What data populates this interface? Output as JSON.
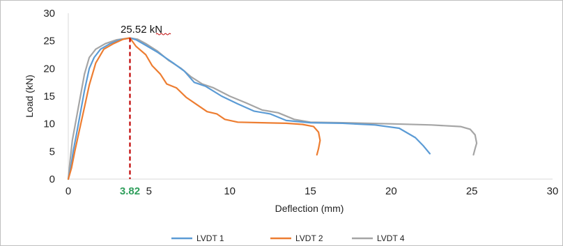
{
  "colors": {
    "lvdt1": "#5b9bd5",
    "lvdt2": "#ed7d31",
    "lvdt4": "#a5a5a5",
    "axis": "#d9d9d9",
    "peak_marker": "#c00000",
    "deflection_marker_label": "#2e9e5b"
  },
  "chart_data": {
    "type": "line",
    "title": "",
    "xlabel": "Deflection (mm)",
    "ylabel": "Load (kN)",
    "xlim": [
      0,
      30
    ],
    "ylim": [
      0,
      30
    ],
    "xticks": [
      0,
      5,
      10,
      15,
      20,
      25,
      30
    ],
    "yticks": [
      0,
      5,
      10,
      15,
      20,
      25,
      30
    ],
    "grid": false,
    "legend_position": "bottom",
    "peak_label": "25.52 kN",
    "peak_deflection_label": "3.82",
    "peak": {
      "x": 3.82,
      "y": 25.52
    },
    "series": [
      {
        "name": "LVDT 1",
        "points": [
          [
            0,
            0
          ],
          [
            0.15,
            2
          ],
          [
            0.3,
            5
          ],
          [
            0.5,
            8
          ],
          [
            0.75,
            12
          ],
          [
            1.0,
            16
          ],
          [
            1.3,
            20
          ],
          [
            1.6,
            22
          ],
          [
            2.0,
            23.5
          ],
          [
            2.6,
            24.5
          ],
          [
            3.2,
            25.2
          ],
          [
            3.82,
            25.52
          ],
          [
            4.2,
            25.2
          ],
          [
            4.8,
            24.2
          ],
          [
            5.5,
            23.0
          ],
          [
            6.0,
            22.0
          ],
          [
            6.5,
            21.0
          ],
          [
            7.2,
            19.5
          ],
          [
            7.8,
            17.5
          ],
          [
            8.5,
            16.8
          ],
          [
            9.5,
            15.0
          ],
          [
            10.5,
            13.6
          ],
          [
            11.5,
            12.3
          ],
          [
            12.5,
            11.8
          ],
          [
            13.5,
            10.6
          ],
          [
            15.0,
            10.2
          ],
          [
            17.0,
            10.1
          ],
          [
            19.0,
            9.8
          ],
          [
            20.5,
            9.2
          ],
          [
            21.5,
            7.5
          ],
          [
            22.0,
            6.0
          ],
          [
            22.4,
            4.6
          ]
        ]
      },
      {
        "name": "LVDT 2",
        "points": [
          [
            0,
            0
          ],
          [
            0.2,
            2
          ],
          [
            0.4,
            5
          ],
          [
            0.7,
            9
          ],
          [
            1.0,
            13
          ],
          [
            1.3,
            17
          ],
          [
            1.7,
            21
          ],
          [
            2.2,
            23.5
          ],
          [
            2.8,
            24.5
          ],
          [
            3.4,
            25.3
          ],
          [
            3.82,
            25.52
          ],
          [
            4.2,
            24.0
          ],
          [
            4.8,
            22.5
          ],
          [
            5.2,
            20.5
          ],
          [
            5.7,
            19.0
          ],
          [
            6.1,
            17.2
          ],
          [
            6.7,
            16.5
          ],
          [
            7.3,
            14.8
          ],
          [
            8.0,
            13.4
          ],
          [
            8.6,
            12.2
          ],
          [
            9.2,
            11.8
          ],
          [
            9.7,
            10.8
          ],
          [
            10.5,
            10.3
          ],
          [
            12.0,
            10.2
          ],
          [
            13.5,
            10.1
          ],
          [
            14.5,
            9.9
          ],
          [
            15.2,
            9.5
          ],
          [
            15.5,
            8.5
          ],
          [
            15.6,
            7.0
          ],
          [
            15.5,
            5.5
          ],
          [
            15.4,
            4.4
          ]
        ]
      },
      {
        "name": "LVDT 4",
        "points": [
          [
            0,
            0
          ],
          [
            0.1,
            3
          ],
          [
            0.25,
            7
          ],
          [
            0.5,
            11
          ],
          [
            0.75,
            15
          ],
          [
            1.0,
            19
          ],
          [
            1.3,
            22
          ],
          [
            1.7,
            23.5
          ],
          [
            2.3,
            24.5
          ],
          [
            3.0,
            25.2
          ],
          [
            3.82,
            25.52
          ],
          [
            4.3,
            25.3
          ],
          [
            4.8,
            24.5
          ],
          [
            5.5,
            23.2
          ],
          [
            6.2,
            21.5
          ],
          [
            7.0,
            20.0
          ],
          [
            7.6,
            18.5
          ],
          [
            8.3,
            17.2
          ],
          [
            9.0,
            16.5
          ],
          [
            10.0,
            15.0
          ],
          [
            11.0,
            13.8
          ],
          [
            12.0,
            12.5
          ],
          [
            13.0,
            12.0
          ],
          [
            14.0,
            10.8
          ],
          [
            15.0,
            10.3
          ],
          [
            17.0,
            10.2
          ],
          [
            20.0,
            10.0
          ],
          [
            22.5,
            9.8
          ],
          [
            24.3,
            9.5
          ],
          [
            24.9,
            9.0
          ],
          [
            25.2,
            8.0
          ],
          [
            25.3,
            6.5
          ],
          [
            25.2,
            5.5
          ],
          [
            25.1,
            4.4
          ]
        ]
      }
    ]
  }
}
